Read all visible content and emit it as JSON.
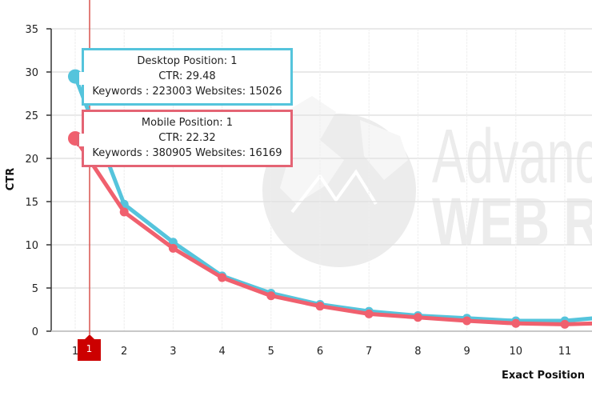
{
  "chart_data": {
    "type": "line",
    "title": "",
    "xlabel": "Exact Position",
    "ylabel": "CTR",
    "ylim": [
      0,
      35
    ],
    "yticks": [
      0,
      5,
      10,
      15,
      20,
      25,
      30,
      35
    ],
    "x": [
      1,
      2,
      3,
      4,
      5,
      6,
      7,
      8,
      9,
      10,
      11
    ],
    "xtick_labels": [
      "1",
      "2",
      "3",
      "4",
      "5",
      "6",
      "7",
      "8",
      "9",
      "10",
      "11"
    ],
    "grid": true,
    "legend": "none",
    "series": [
      {
        "name": "Desktop",
        "color": "#55c4dc",
        "values": [
          29.48,
          14.7,
          10.3,
          6.4,
          4.4,
          3.1,
          2.3,
          1.8,
          1.5,
          1.2,
          1.2
        ]
      },
      {
        "name": "Mobile",
        "color": "#f0606e",
        "values": [
          22.32,
          13.8,
          9.6,
          6.2,
          4.1,
          2.9,
          2.0,
          1.6,
          1.2,
          0.9,
          0.8
        ]
      }
    ],
    "annotations": {
      "crosshair_x": 1,
      "crosshair_label": "1"
    }
  },
  "tooltips": {
    "desktop": {
      "title": "Desktop Position: 1",
      "ctr": "CTR: 29.48",
      "details": "Keywords : 223003 Websites: 15026",
      "color": "#55c4dc"
    },
    "mobile": {
      "title": "Mobile Position: 1",
      "ctr": "CTR: 22.32",
      "details": "Keywords : 380905 Websites: 16169",
      "color": "#e46474"
    }
  },
  "watermark": {
    "line1": "Advanc",
    "line2": "WEB R"
  },
  "crosshair": {
    "label": "1",
    "color": "#cc0000"
  }
}
